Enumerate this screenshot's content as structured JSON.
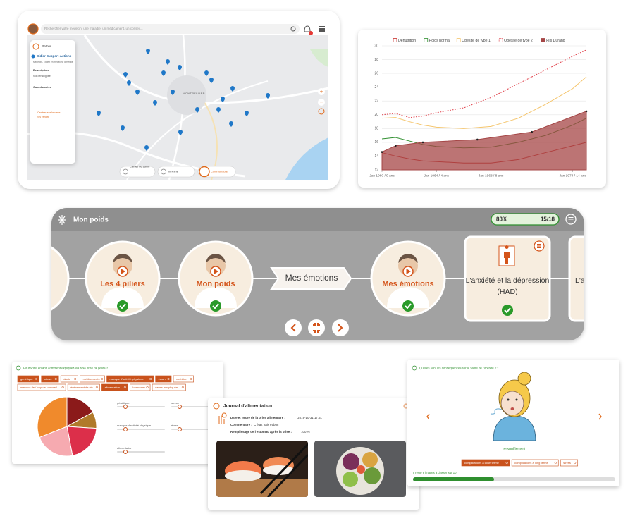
{
  "map_panel": {
    "search_placeholder": "Rechercher votre médecin, une maladie, un médicament, un conseil...",
    "back": "Retour",
    "doctor_name": "Didier Support-Actions",
    "doctor_role": "Médecin - Expert en médecine générale",
    "description_label": "Description",
    "description": "Non renseignée",
    "coordinates_label": "Coordonnées",
    "center_link": "Centrer sur la carte",
    "directions_link": "S'y rendre",
    "city": "MONTPELLIER",
    "nav": [
      "Carnet de santé",
      "Timeline",
      "Communauté"
    ]
  },
  "chart_data": {
    "type": "line",
    "x": [
      0,
      1,
      2,
      3,
      4,
      6,
      8,
      10,
      12,
      14,
      15
    ],
    "series": [
      {
        "name": "Dénutrition",
        "color": "#c9302c",
        "style": "solid",
        "values": [
          14.5,
          14.0,
          13.6,
          13.3,
          13.2,
          13.0,
          13.0,
          13.5,
          14.5,
          15.5,
          16.0
        ]
      },
      {
        "name": "Poids normal",
        "color": "#2f8f2f",
        "style": "solid",
        "values": [
          16.5,
          16.7,
          16.2,
          15.7,
          15.4,
          15.2,
          15.3,
          16.0,
          17.0,
          18.5,
          19.5
        ]
      },
      {
        "name": "Obésité de type 1",
        "color": "#f4c46a",
        "style": "solid",
        "values": [
          19.5,
          19.6,
          19.0,
          18.5,
          18.2,
          18.0,
          18.3,
          19.5,
          21.5,
          23.8,
          25.5
        ]
      },
      {
        "name": "Obésité de type 2",
        "color": "#e0404a",
        "style": "dashed",
        "values": [
          20.0,
          20.2,
          19.6,
          19.8,
          20.3,
          21.0,
          22.5,
          24.5,
          26.5,
          28.5,
          29.4
        ]
      },
      {
        "name": "Fils Durand",
        "color": "#a54646",
        "style": "area",
        "x": [
          0,
          1,
          3,
          7,
          11,
          15
        ],
        "values": [
          14.6,
          15.5,
          16.0,
          16.4,
          17.5,
          20.5
        ]
      }
    ],
    "xlim": [
      0,
      15
    ],
    "xticks": [
      {
        "value": 0,
        "label": "Jan 1960 / 0 ans"
      },
      {
        "value": 4,
        "label": "Jan 1964 / 4 ans"
      },
      {
        "value": 8,
        "label": "Jan 1968 / 8 ans"
      },
      {
        "value": 14,
        "label": "Jan 1974 / 14 ans"
      }
    ],
    "ylim": [
      12,
      30
    ],
    "yticks": [
      12,
      14,
      16,
      18,
      20,
      22,
      24,
      26,
      28,
      30
    ],
    "grid": true,
    "legend": "top"
  },
  "course": {
    "title": "Mon poids",
    "progress": "83%",
    "step": "15/18",
    "items": [
      "Les 4 piliers",
      "Mon poids"
    ],
    "chapter": "Mes émotions",
    "current": "Mes émotions",
    "card_lines": [
      "L'anxiété et la dépression",
      "(HAD)"
    ],
    "next_partial": "L'a"
  },
  "survey": {
    "question": "Pour votre enfant, comment expliquez-vous sa prise de poids ?",
    "tags": [
      [
        {
          "label": "génétique",
          "selected": true
        },
        {
          "label": "stress",
          "selected": true
        },
        {
          "label": "droite",
          "selected": false
        },
        {
          "label": "médicaments",
          "selected": false
        },
        {
          "label": "manque d'activité physique",
          "selected": true
        },
        {
          "label": "écran",
          "selected": true
        },
        {
          "label": "mal-être",
          "selected": false
        }
      ],
      [
        {
          "label": "manque de / trop de sommeil",
          "selected": false
        },
        {
          "label": "événement de vie",
          "selected": false
        },
        {
          "label": "alimentation",
          "selected": true
        },
        {
          "label": "hormones",
          "selected": false
        },
        {
          "label": "cause inexpliquée",
          "selected": false
        }
      ]
    ],
    "pie": {
      "values": [
        17,
        9,
        21,
        22,
        31
      ],
      "colors": [
        "#8b1a1a",
        "#b07a2a",
        "#dc2f4a",
        "#f6aab0",
        "#f08a2c"
      ]
    },
    "sliders": [
      "génétique",
      "stress",
      "manque d'activité physique",
      "écran",
      "alimentation"
    ]
  },
  "journal": {
    "title": "Journal d'alimentation",
    "lines": [
      {
        "label": "Date et heure de la prise alimentaire :",
        "value": "2019-10-31 17:51"
      },
      {
        "label": "Commentaire :",
        "value": "C'était frais et bon !"
      },
      {
        "label": "Remplissage de l'estomac après la prise :",
        "value": "100 %"
      }
    ]
  },
  "quiz": {
    "question": "Quelles sont les conséquences sur la santé de l'obésité ? *",
    "caption": "essoufflement",
    "tags": [
      {
        "label": "complications à court terme",
        "selected": true
      },
      {
        "label": "complications à long terme",
        "selected": false
      },
      {
        "label": "stress",
        "selected": false
      }
    ],
    "remaining": "Il reste 6 images à classer sur 10"
  }
}
